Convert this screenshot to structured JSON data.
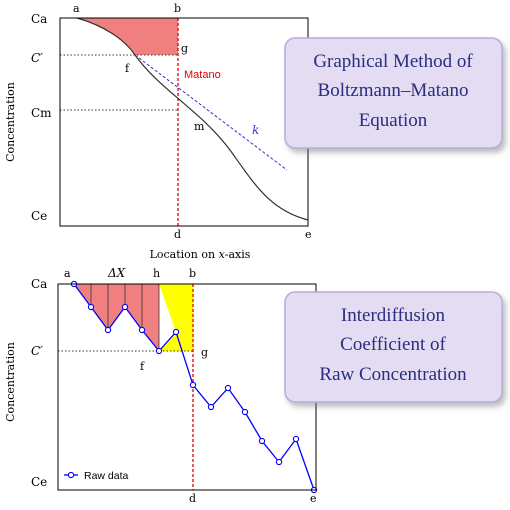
{
  "top_panel": {
    "y_axis_label": "Concentration",
    "x_axis_label_prefix": "Location on ",
    "x_axis_label_var": "x",
    "x_axis_label_suffix": "-axis",
    "y_ticks": {
      "ca": "Ca",
      "cprime": "C′",
      "cm": "Cm",
      "ce": "Ce"
    },
    "points": {
      "a": "a",
      "b": "b",
      "d": "d",
      "e": "e",
      "f": "f",
      "g": "g",
      "m": "m"
    },
    "matano_label": "Matano",
    "k_label": "k",
    "title_lines": [
      "Graphical Method of",
      "Boltzmann–Matano",
      "Equation"
    ]
  },
  "bottom_panel": {
    "y_axis_label": "Concentration",
    "y_ticks": {
      "ca": "Ca",
      "cprime": "C′",
      "ce": "Ce"
    },
    "points": {
      "a": "a",
      "h": "h",
      "b": "b",
      "f": "f",
      "g": "g",
      "d": "d",
      "e": "e"
    },
    "delta_x_label": "ΔX",
    "legend": "Raw data",
    "title_lines": [
      "Interdiffusion",
      "Coefficient of",
      "Raw Concentration"
    ]
  },
  "colors": {
    "red_fill": "#f08080",
    "yellow_fill": "#ffff00",
    "raw_line": "#0000ff",
    "matano_line": "#e00000",
    "tangent": "#3333cc",
    "title_box_fill": "#e3dcf2",
    "title_box_stroke": "#b9acd8",
    "title_text": "#2b2d80"
  }
}
